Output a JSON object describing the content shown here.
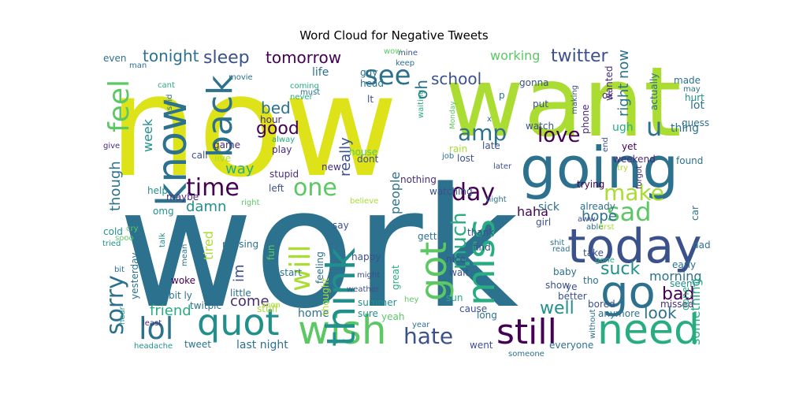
{
  "title": "Word Cloud for Negative Tweets",
  "palette": [
    "#440154",
    "#472c7a",
    "#3b518b",
    "#2c718e",
    "#21908d",
    "#27ad81",
    "#5cc863",
    "#aadc32",
    "#dde318"
  ],
  "words": [
    {
      "text": "work",
      "c": 3
    },
    {
      "text": "now",
      "c": 8
    },
    {
      "text": "want",
      "c": 7
    },
    {
      "text": "going",
      "c": 3
    },
    {
      "text": "today",
      "c": 2
    },
    {
      "text": "quot",
      "c": 4
    },
    {
      "text": "wish",
      "c": 6
    },
    {
      "text": "need",
      "c": 5
    },
    {
      "text": "still",
      "c": 0
    },
    {
      "text": "go",
      "c": 3
    },
    {
      "text": "think",
      "c": 4
    },
    {
      "text": "know",
      "c": 3
    },
    {
      "text": "back",
      "c": 3
    },
    {
      "text": "miss",
      "c": 5
    },
    {
      "text": "got",
      "c": 6
    },
    {
      "text": "feel",
      "c": 6
    },
    {
      "text": "lol",
      "c": 3
    },
    {
      "text": "sorry",
      "c": 3
    },
    {
      "text": "see",
      "c": 3
    },
    {
      "text": "hate",
      "c": 2
    },
    {
      "text": "love",
      "c": 0
    },
    {
      "text": "time",
      "c": 0
    },
    {
      "text": "one",
      "c": 6
    },
    {
      "text": "make",
      "c": 7
    },
    {
      "text": "sad",
      "c": 6
    },
    {
      "text": "amp",
      "c": 3
    },
    {
      "text": "day",
      "c": 0
    },
    {
      "text": "u",
      "c": 3
    },
    {
      "text": "will",
      "c": 7
    },
    {
      "text": "much",
      "c": 5
    },
    {
      "text": "good",
      "c": 0
    },
    {
      "text": "suck",
      "c": 4
    },
    {
      "text": "well",
      "c": 4
    },
    {
      "text": "bad",
      "c": 0
    },
    {
      "text": "look",
      "c": 3
    },
    {
      "text": "sleep",
      "c": 2
    },
    {
      "text": "tomorrow",
      "c": 0
    },
    {
      "text": "school",
      "c": 2
    },
    {
      "text": "twitter",
      "c": 2
    },
    {
      "text": "tonight",
      "c": 3
    },
    {
      "text": "working",
      "c": 6
    },
    {
      "text": "right now",
      "c": 3
    },
    {
      "text": "bed",
      "c": 3
    },
    {
      "text": "oh",
      "c": 3
    },
    {
      "text": "though",
      "c": 3
    },
    {
      "text": "week",
      "c": 4
    },
    {
      "text": "way",
      "c": 5
    },
    {
      "text": "damn",
      "c": 4
    },
    {
      "text": "really",
      "c": 2
    },
    {
      "text": "people",
      "c": 3
    },
    {
      "text": "haha",
      "c": 0
    },
    {
      "text": "hope",
      "c": 3
    },
    {
      "text": "friend",
      "c": 5
    },
    {
      "text": "come",
      "c": 1
    },
    {
      "text": "im",
      "c": 2
    },
    {
      "text": "home",
      "c": 3
    },
    {
      "text": "morning",
      "c": 3
    },
    {
      "text": "thing",
      "c": 3
    },
    {
      "text": "something",
      "c": 5
    },
    {
      "text": "tired",
      "c": 7
    },
    {
      "text": "last night",
      "c": 3
    },
    {
      "text": "ugh",
      "c": 5
    },
    {
      "text": "sick",
      "c": 3
    },
    {
      "text": "made",
      "c": 3
    },
    {
      "text": "guess",
      "c": 3
    },
    {
      "text": "lot",
      "c": 3
    },
    {
      "text": "even",
      "c": 3
    },
    {
      "text": "life",
      "c": 3
    },
    {
      "text": "watching",
      "c": 2
    },
    {
      "text": "already",
      "c": 3
    },
    {
      "text": "weekend",
      "c": 1
    },
    {
      "text": "yet",
      "c": 0
    },
    {
      "text": "missed",
      "c": 1
    },
    {
      "text": "found",
      "c": 3
    },
    {
      "text": "early",
      "c": 3
    },
    {
      "text": "seem",
      "c": 4
    },
    {
      "text": "done",
      "c": 5
    },
    {
      "text": "trying",
      "c": 0
    },
    {
      "text": "phone",
      "c": 1
    },
    {
      "text": "ok",
      "c": 1
    },
    {
      "text": "wanted",
      "c": 1
    },
    {
      "text": "actually",
      "c": 3
    },
    {
      "text": "hurt",
      "c": 4
    },
    {
      "text": "may",
      "c": 3
    },
    {
      "text": "later",
      "c": 2
    },
    {
      "text": "nothing",
      "c": 1
    },
    {
      "text": "stupid",
      "c": 1
    },
    {
      "text": "new",
      "c": 1
    },
    {
      "text": "dont",
      "c": 2
    },
    {
      "text": "left",
      "c": 2
    },
    {
      "text": "house",
      "c": 6
    },
    {
      "text": "lost",
      "c": 2
    },
    {
      "text": "rain",
      "c": 7
    },
    {
      "text": "watch",
      "c": 2
    },
    {
      "text": "put",
      "c": 2
    },
    {
      "text": "late",
      "c": 2
    },
    {
      "text": "gonna",
      "c": 2
    },
    {
      "text": "waiting",
      "c": 5
    },
    {
      "text": "guy",
      "c": 3
    },
    {
      "text": "head",
      "c": 3
    },
    {
      "text": "lt",
      "c": 2
    },
    {
      "text": "x",
      "c": 3
    },
    {
      "text": "p",
      "c": 3
    },
    {
      "text": "game",
      "c": 1
    },
    {
      "text": "call",
      "c": 2
    },
    {
      "text": "live",
      "c": 7
    },
    {
      "text": "hour",
      "c": 1
    },
    {
      "text": "alway",
      "c": 5
    },
    {
      "text": "play",
      "c": 1
    },
    {
      "text": "coming",
      "c": 5
    },
    {
      "text": "never",
      "c": 5
    },
    {
      "text": "must",
      "c": 3
    },
    {
      "text": "movie",
      "c": 3
    },
    {
      "text": "man",
      "c": 3
    },
    {
      "text": "cant",
      "c": 5
    },
    {
      "text": "said",
      "c": 3
    },
    {
      "text": "mine",
      "c": 2
    },
    {
      "text": "wow",
      "c": 6
    },
    {
      "text": "keep",
      "c": 3
    },
    {
      "text": "give",
      "c": 1
    },
    {
      "text": "help",
      "c": 4
    },
    {
      "text": "maybe",
      "c": 1
    },
    {
      "text": "omg",
      "c": 4
    },
    {
      "text": "cold",
      "c": 4
    },
    {
      "text": "sun",
      "c": 5
    },
    {
      "text": "tried",
      "c": 4
    },
    {
      "text": "bit",
      "c": 3
    },
    {
      "text": "talk",
      "c": 4
    },
    {
      "text": "mean",
      "c": 3
    },
    {
      "text": "woke",
      "c": 0
    },
    {
      "text": "yesterday",
      "c": 3
    },
    {
      "text": "bit ly",
      "c": 3
    },
    {
      "text": "twitpic",
      "c": 3
    },
    {
      "text": "little",
      "c": 3
    },
    {
      "text": "least",
      "c": 1
    },
    {
      "text": "stuff",
      "c": 7
    },
    {
      "text": "soon",
      "c": 7
    },
    {
      "text": "tweet",
      "c": 3
    },
    {
      "text": "hear",
      "c": 4
    },
    {
      "text": "headache",
      "c": 4
    },
    {
      "text": "missing",
      "c": 3
    },
    {
      "text": "fun",
      "c": 6
    },
    {
      "text": "start",
      "c": 3
    },
    {
      "text": "feeling",
      "c": 3
    },
    {
      "text": "happy",
      "c": 2
    },
    {
      "text": "might",
      "c": 2
    },
    {
      "text": "weather",
      "c": 2
    },
    {
      "text": "thought",
      "c": 7
    },
    {
      "text": "summer",
      "c": 4
    },
    {
      "text": "sure",
      "c": 4
    },
    {
      "text": "yeah",
      "c": 6
    },
    {
      "text": "hey",
      "c": 6
    },
    {
      "text": "great",
      "c": 5
    },
    {
      "text": "cause",
      "c": 2
    },
    {
      "text": "year",
      "c": 3
    },
    {
      "text": "long",
      "c": 3
    },
    {
      "text": "went",
      "c": 2
    },
    {
      "text": "someone",
      "c": 3
    },
    {
      "text": "everyone",
      "c": 3
    },
    {
      "text": "better",
      "c": 2
    },
    {
      "text": "anymore",
      "c": 3
    },
    {
      "text": "without",
      "c": 3
    },
    {
      "text": "bored",
      "c": 2
    },
    {
      "text": "show",
      "c": 2
    },
    {
      "text": "ye",
      "c": 2
    },
    {
      "text": "baby",
      "c": 3
    },
    {
      "text": "take",
      "c": 2
    },
    {
      "text": "tho",
      "c": 3
    },
    {
      "text": "gone",
      "c": 5
    },
    {
      "text": "read",
      "c": 3
    },
    {
      "text": "shit",
      "c": 3
    },
    {
      "text": "girl",
      "c": 2
    },
    {
      "text": "nice",
      "c": 2
    },
    {
      "text": "wait",
      "c": 2
    },
    {
      "text": "getting",
      "c": 3
    },
    {
      "text": "find",
      "c": 2
    },
    {
      "text": "thank",
      "c": 2
    },
    {
      "text": "night",
      "c": 3
    },
    {
      "text": "say",
      "c": 2
    },
    {
      "text": "believe",
      "c": 7
    },
    {
      "text": "aww",
      "c": 2
    },
    {
      "text": "able",
      "c": 3
    },
    {
      "text": "first",
      "c": 7
    },
    {
      "text": "dad",
      "c": 3
    },
    {
      "text": "car",
      "c": 3
    },
    {
      "text": "try",
      "c": 7
    },
    {
      "text": "forgot",
      "c": 1
    },
    {
      "text": "end",
      "c": 2
    },
    {
      "text": "job",
      "c": 3
    },
    {
      "text": "Monday",
      "c": 6
    },
    {
      "text": "making",
      "c": 2
    },
    {
      "text": "right",
      "c": 6
    },
    {
      "text": "cry",
      "c": 6
    },
    {
      "text": "sooo",
      "c": 6
    }
  ]
}
